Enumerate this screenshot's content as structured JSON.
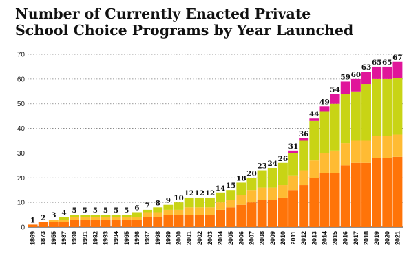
{
  "chart_data": {
    "type": "bar",
    "stacked": true,
    "title_lines": [
      "Number of Currently Enacted Private",
      "School Choice Programs by Year Launched"
    ],
    "xlabel": "",
    "ylabel": "",
    "ylim": [
      0,
      70
    ],
    "yticks": [
      0,
      10,
      20,
      30,
      40,
      50,
      60,
      70
    ],
    "grid": true,
    "categories": [
      "1869",
      "1873",
      "1955",
      "1987",
      "1990",
      "1991",
      "1992",
      "1993",
      "1994",
      "1995",
      "1996",
      "1997",
      "1998",
      "1999",
      "2000",
      "2001",
      "2002",
      "2003",
      "2004",
      "2005",
      "2006",
      "2007",
      "2008",
      "2009",
      "2010",
      "2011",
      "2012",
      "2013",
      "2014",
      "2015",
      "2016",
      "2017",
      "2018",
      "2019",
      "2020",
      "2021"
    ],
    "totals": [
      1,
      2,
      3,
      4,
      5,
      5,
      5,
      5,
      5,
      5,
      6,
      7,
      8,
      9,
      10,
      12,
      12,
      12,
      14,
      15,
      18,
      20,
      23,
      24,
      26,
      31,
      36,
      44,
      49,
      54,
      59,
      60,
      63,
      65,
      65,
      67
    ],
    "series": [
      {
        "name": "segment-1",
        "color": "#ff7409",
        "values": [
          1,
          2,
          2,
          2,
          3,
          3,
          3,
          3,
          3,
          3,
          3,
          4,
          4,
          5,
          5,
          5,
          5,
          5,
          7,
          8,
          9,
          10,
          11,
          11,
          12,
          15,
          17,
          20,
          22,
          22,
          25,
          26,
          26,
          28,
          28,
          28.5
        ]
      },
      {
        "name": "segment-2",
        "color": "#ffbb33",
        "values": [
          0,
          0,
          1,
          1,
          1,
          1,
          1,
          1,
          1,
          1,
          1,
          2,
          2,
          2,
          2,
          3,
          3,
          3,
          3,
          3,
          4,
          5,
          5,
          5,
          5,
          6,
          6,
          7,
          8,
          9,
          9,
          9,
          9,
          9,
          9,
          9
        ]
      },
      {
        "name": "segment-3",
        "color": "#c8d415",
        "values": [
          0,
          0,
          0,
          1,
          1,
          1,
          1,
          1,
          1,
          1,
          2,
          1,
          2,
          2,
          3,
          4,
          4,
          4,
          4,
          4,
          5,
          5,
          7,
          8,
          9,
          9,
          12,
          16,
          17,
          19,
          20,
          20,
          23,
          23,
          23,
          23
        ]
      },
      {
        "name": "segment-4",
        "color": "#e0159a",
        "values": [
          0,
          0,
          0,
          0,
          0,
          0,
          0,
          0,
          0,
          0,
          0,
          0,
          0,
          0,
          0,
          0,
          0,
          0,
          0,
          0,
          0,
          0,
          0,
          0,
          0,
          1,
          1,
          1,
          2,
          4,
          5,
          5,
          5,
          5,
          5,
          6.5
        ]
      }
    ]
  }
}
